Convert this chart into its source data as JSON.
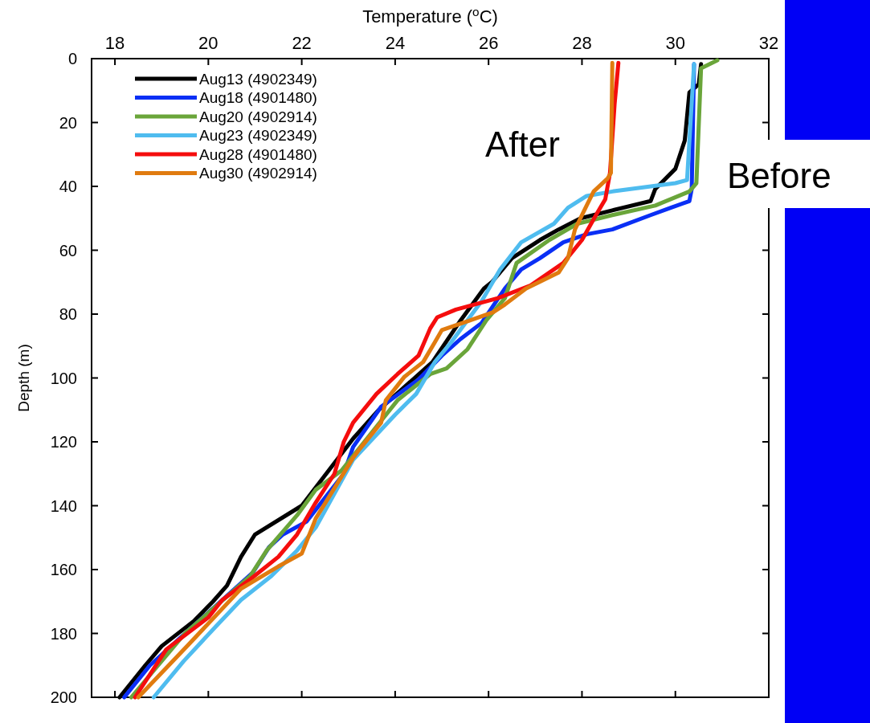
{
  "chart_data": {
    "type": "line",
    "xlabel": "Temperature ($^{o}$C)",
    "ylabel": "Depth (m)",
    "xlim": [
      17.5,
      32
    ],
    "xticks": [
      18,
      20,
      22,
      24,
      26,
      28,
      30,
      32
    ],
    "ylim": [
      200,
      0
    ],
    "yticks": [
      0,
      20,
      40,
      60,
      80,
      100,
      120,
      140,
      160,
      180,
      200
    ],
    "legend": "top left",
    "grid": false,
    "line_style": "solid",
    "marker": "none",
    "annotations": [
      "After",
      "Before"
    ],
    "series": [
      {
        "name": "Aug13 (4902349)",
        "color": "#000000",
        "x": [
          30.55,
          30.5,
          30.3,
          30.2,
          30.0,
          29.57,
          29.47,
          28.65,
          27.97,
          27.5,
          27.1,
          26.5,
          26.07,
          25.9,
          25.4,
          24.8,
          23.65,
          23.1,
          22.0,
          21.0,
          20.7,
          20.4,
          20.1,
          19.7,
          19.0,
          18.65,
          18.1
        ],
        "values": [
          1.7,
          8,
          10.6,
          25.7,
          34.5,
          40.8,
          44.6,
          47.5,
          50,
          53.5,
          56.8,
          62.5,
          70,
          72,
          82,
          95,
          110,
          119,
          140,
          149,
          156,
          165,
          170,
          176,
          184,
          190,
          200
        ]
      },
      {
        "name": "Aug18 (4901480)",
        "color": "#0a2ff5",
        "x": [
          30.4,
          30.35,
          30.3,
          29.9,
          29.47,
          28.65,
          28.1,
          27.6,
          27.1,
          26.7,
          26.35,
          25.85,
          25.4,
          25.0,
          24.5,
          23.7,
          23.1,
          22.9,
          22.1,
          21.6,
          21.3,
          20.95,
          19.5,
          18.75,
          18.2
        ],
        "values": [
          1.7,
          40.8,
          44.6,
          46.7,
          49,
          53.5,
          55,
          57.5,
          62.5,
          66,
          72,
          82.8,
          87.8,
          93,
          100.5,
          109,
          121.6,
          130,
          145,
          149,
          153,
          161,
          180,
          190,
          200
        ]
      },
      {
        "name": "Aug20 (4902914)",
        "color": "#6aa53a",
        "x": [
          30.9,
          30.55,
          30.45,
          30.3,
          29.57,
          28.65,
          27.9,
          27.3,
          26.6,
          26.35,
          25.95,
          25.55,
          25.1,
          24.75,
          24.05,
          22.85,
          22.3,
          21.9,
          21.25,
          20.9,
          19.5,
          18.35
        ],
        "values": [
          0.5,
          3,
          39,
          41.6,
          46,
          49,
          51.7,
          56.8,
          64,
          75,
          82,
          91,
          97,
          98.8,
          107,
          129,
          135,
          143,
          154,
          162,
          180,
          200
        ]
      },
      {
        "name": "Aug23 (4902349)",
        "color": "#4fbcef",
        "x": [
          30.4,
          30.25,
          30.0,
          28.65,
          28.1,
          27.7,
          27.4,
          26.7,
          26.25,
          25.85,
          25.2,
          24.85,
          24.45,
          24.0,
          23.1,
          22.3,
          21.9,
          21.35,
          20.7,
          20.15,
          19.47,
          18.83
        ],
        "values": [
          1.7,
          38,
          39,
          41.6,
          43,
          46.7,
          51.7,
          57.5,
          66,
          76,
          88.8,
          95,
          105,
          111.5,
          125.6,
          146.8,
          154,
          162,
          169.5,
          178,
          188.7,
          200
        ]
      },
      {
        "name": "Aug28 (4901480)",
        "color": "#f50d0d",
        "x": [
          28.78,
          28.7,
          28.6,
          28.5,
          28.3,
          28.0,
          27.6,
          26.9,
          26.2,
          25.3,
          24.9,
          24.75,
          24.5,
          24.05,
          23.6,
          23.1,
          22.9,
          22.7,
          22.3,
          21.9,
          21.5,
          20.9,
          20.3,
          20.0,
          19.1,
          18.43
        ],
        "values": [
          1.3,
          14,
          35.8,
          44,
          49,
          56.8,
          64,
          71,
          75,
          78.6,
          81,
          84.5,
          93,
          98.8,
          105,
          114,
          120,
          130,
          139,
          149,
          156,
          163,
          169.5,
          175,
          185,
          200
        ]
      },
      {
        "name": "Aug30 (4902914)",
        "color": "#e07b0f",
        "x": [
          28.65,
          28.62,
          28.55,
          28.25,
          28.1,
          27.85,
          27.7,
          27.5,
          26.8,
          26.35,
          26.1,
          25.6,
          25.0,
          24.85,
          24.6,
          24.2,
          23.8,
          23.7,
          23.2,
          23.1,
          22.3,
          22.0,
          21.5,
          20.7,
          19.57,
          18.5
        ],
        "values": [
          1.3,
          35.8,
          37.5,
          41.6,
          46,
          53.5,
          62.5,
          67,
          72,
          77,
          79.4,
          82,
          85,
          88.8,
          95,
          99.6,
          107,
          114,
          123,
          125,
          144,
          155,
          159,
          166,
          183.6,
          200
        ]
      }
    ]
  }
}
